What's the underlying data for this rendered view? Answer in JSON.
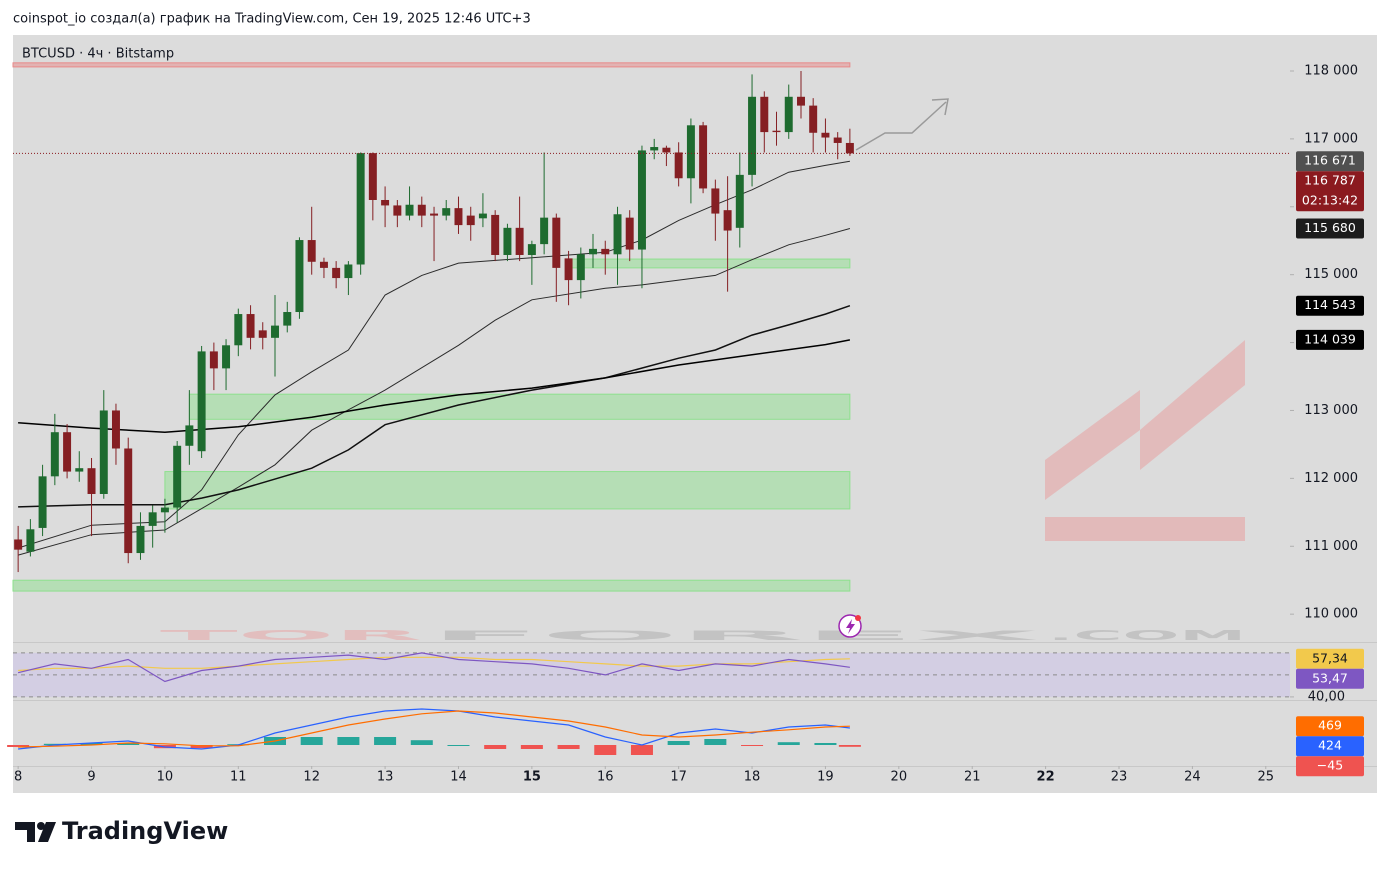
{
  "header": "coinspot_io создал(а) график на TradingView.com, Сен 19, 2025 12:46 UTC+3",
  "symbol": "BTCUSD · 4ч · Bitstamp",
  "watermark": {
    "part1": "TOR",
    "part2": "FOREX",
    "part3": ".COM"
  },
  "footer": {
    "brand": "TradingView"
  },
  "chart_data": [
    {
      "type": "candlestick",
      "xlim": [
        7.93,
        25.33
      ],
      "xticks": [
        8,
        9,
        10,
        11,
        12,
        13,
        14,
        15,
        16,
        17,
        18,
        19,
        20,
        21,
        22,
        23,
        24,
        25
      ],
      "xticks_bold": [
        15,
        22
      ],
      "ylim": [
        109590,
        118530
      ],
      "yticks": [
        {
          "value": 110000,
          "label": "110 000"
        },
        {
          "value": 111000,
          "label": "111 000"
        },
        {
          "value": 112000,
          "label": "112 000"
        },
        {
          "value": 113000,
          "label": "113 000"
        },
        {
          "value": 114000,
          "label": "114 000"
        },
        {
          "value": 115000,
          "label": "115 000"
        },
        {
          "value": 116000,
          "label": "116 000"
        },
        {
          "value": 117000,
          "label": "117 000"
        },
        {
          "value": 118000,
          "label": "118 000"
        }
      ],
      "grid": false,
      "up_color": "#1e6b2f",
      "down_color": "#851f23",
      "x": [
        8,
        8.167,
        8.333,
        8.5,
        8.667,
        8.833,
        9,
        9.167,
        9.333,
        9.5,
        9.667,
        9.833,
        10,
        10.167,
        10.333,
        10.5,
        10.667,
        10.833,
        11,
        11.167,
        11.333,
        11.5,
        11.667,
        11.833,
        12,
        12.167,
        12.333,
        12.5,
        12.667,
        12.833,
        13,
        13.167,
        13.333,
        13.5,
        13.667,
        13.833,
        14,
        14.167,
        14.333,
        14.5,
        14.667,
        14.833,
        15,
        15.167,
        15.333,
        15.5,
        15.667,
        15.833,
        16,
        16.167,
        16.333,
        16.5,
        16.667,
        16.833,
        17,
        17.167,
        17.333,
        17.5,
        17.667,
        17.833,
        18,
        18.167,
        18.333,
        18.5,
        18.667,
        18.833,
        19,
        19.167,
        19.333
      ],
      "open": [
        111100,
        110920,
        111270,
        112030,
        112680,
        112100,
        112150,
        111770,
        113000,
        112440,
        110900,
        111300,
        111500,
        111570,
        112480,
        112400,
        113870,
        113620,
        113960,
        114420,
        114180,
        114070,
        114250,
        114450,
        115510,
        115190,
        115100,
        114950,
        115150,
        116790,
        116100,
        116020,
        115870,
        116030,
        115900,
        115870,
        115980,
        115870,
        115830,
        115880,
        115290,
        115690,
        115290,
        115450,
        115840,
        115240,
        114920,
        115300,
        115380,
        115300,
        115840,
        115370,
        116830,
        116870,
        116800,
        116420,
        117200,
        116270,
        115950,
        115690,
        116470,
        117620,
        117120,
        117100,
        117620,
        117490,
        117090,
        117020,
        116940
      ],
      "high": [
        111300,
        111400,
        112200,
        112950,
        112800,
        112400,
        112300,
        113300,
        113100,
        112600,
        111500,
        111600,
        111700,
        112550,
        113300,
        113950,
        114000,
        114050,
        114500,
        114550,
        114300,
        114700,
        114600,
        115550,
        116000,
        115250,
        115200,
        115200,
        116800,
        116800,
        116300,
        116100,
        116300,
        116150,
        116000,
        116100,
        116150,
        116000,
        116200,
        115950,
        115750,
        116150,
        115500,
        116800,
        115900,
        115350,
        115400,
        115600,
        115500,
        116000,
        115950,
        116900,
        117000,
        116900,
        116950,
        117300,
        117250,
        116400,
        116450,
        116800,
        117950,
        117700,
        117400,
        117800,
        118000,
        117600,
        117300,
        117100,
        117150
      ],
      "low": [
        110620,
        110850,
        111150,
        111900,
        112000,
        111950,
        111150,
        111700,
        112200,
        110750,
        110800,
        110980,
        111200,
        111350,
        112200,
        112300,
        113300,
        113300,
        113800,
        113900,
        113900,
        113500,
        114150,
        114350,
        115000,
        114950,
        114800,
        114700,
        115000,
        115800,
        115700,
        115700,
        115800,
        115700,
        115200,
        115800,
        115600,
        115500,
        115700,
        115200,
        115200,
        115200,
        114850,
        115300,
        114600,
        114550,
        114650,
        115100,
        115000,
        114850,
        115200,
        114800,
        116700,
        116600,
        116300,
        116050,
        116200,
        115500,
        114750,
        115400,
        116300,
        116800,
        116900,
        117000,
        117300,
        116800,
        116800,
        116700,
        116750
      ],
      "close": [
        110950,
        111250,
        112030,
        112680,
        112100,
        112150,
        111770,
        113000,
        112440,
        110900,
        111300,
        111500,
        111570,
        112480,
        112780,
        113870,
        113620,
        113960,
        114420,
        114070,
        114070,
        114250,
        114450,
        115510,
        115190,
        115100,
        114950,
        115150,
        116790,
        116100,
        116020,
        115870,
        116030,
        115870,
        115870,
        115980,
        115730,
        115730,
        115900,
        115290,
        115690,
        115290,
        115450,
        115840,
        115100,
        114920,
        115300,
        115380,
        115300,
        115890,
        115370,
        116830,
        116880,
        116800,
        116420,
        117200,
        116270,
        115900,
        115650,
        116470,
        117620,
        117100,
        117100,
        117620,
        117490,
        117090,
        117020,
        116940,
        116787
      ],
      "last_price": {
        "value": 116787,
        "label": "116 787",
        "countdown": "02:13:42",
        "color": "#8b1a1f"
      },
      "series": [
        {
          "color": "#2b2b2b",
          "width": 1,
          "label_color": "#505050",
          "x": [
            8,
            9,
            10,
            10.5,
            11,
            11.5,
            12,
            12.5,
            13,
            13.5,
            14,
            15,
            15.5,
            16,
            16.5,
            17,
            17.5,
            18,
            18.5,
            19,
            19.333
          ],
          "values": [
            110975,
            111310,
            111360,
            111830,
            112640,
            113230,
            113570,
            113890,
            114700,
            114990,
            115170,
            115250,
            115290,
            115330,
            115510,
            115800,
            116030,
            116250,
            116510,
            116610,
            116671
          ],
          "last_label": "116 671"
        },
        {
          "color": "#2b2b2b",
          "width": 1,
          "label_color": "#1c1c1c",
          "x": [
            8,
            9,
            10,
            11,
            11.5,
            12,
            12.5,
            13,
            14,
            14.5,
            15,
            16,
            16.5,
            17,
            17.5,
            18,
            18.5,
            19,
            19.333
          ],
          "values": [
            110870,
            111170,
            111240,
            111870,
            112200,
            112710,
            113010,
            113300,
            113960,
            114330,
            114630,
            114800,
            114850,
            114920,
            114990,
            115220,
            115440,
            115580,
            115680
          ],
          "last_label": "115 680"
        },
        {
          "color": "#111111",
          "width": 1.5,
          "label_color": "#000000",
          "x": [
            8,
            9,
            10,
            10.5,
            11,
            12,
            12.5,
            13,
            14,
            15,
            16,
            17,
            17.5,
            18,
            18.5,
            19,
            19.333
          ],
          "values": [
            111580,
            111610,
            111610,
            111710,
            111830,
            112150,
            112420,
            112790,
            113080,
            113300,
            113480,
            113770,
            113890,
            114110,
            114260,
            114420,
            114543
          ],
          "last_label": "114 543"
        },
        {
          "color": "#000000",
          "width": 1.5,
          "label_color": "#000000",
          "x": [
            8,
            9,
            10,
            11,
            12,
            13,
            14,
            15,
            16,
            17,
            18,
            19,
            19.333
          ],
          "values": [
            112820,
            112740,
            112680,
            112760,
            112900,
            113080,
            113230,
            113330,
            113480,
            113670,
            113820,
            113970,
            114039
          ],
          "last_label": "114 039"
        }
      ],
      "zones": [
        {
          "x": [
            15.5,
            19.333
          ],
          "y": [
            115100,
            115230
          ],
          "color": "#8ee08e"
        },
        {
          "x": [
            10.333,
            19.333
          ],
          "y": [
            112870,
            113240
          ],
          "color": "#8ee08e"
        },
        {
          "x": [
            10,
            19.333
          ],
          "y": [
            111550,
            112100
          ],
          "color": "#8ee08e"
        },
        {
          "x": [
            7.93,
            19.333
          ],
          "y": [
            110340,
            110500
          ],
          "color": "#8ee08e"
        },
        {
          "x": [
            7.93,
            19.333
          ],
          "y": [
            118060,
            118120
          ],
          "color": "#e88a8a"
        }
      ]
    },
    {
      "type": "line",
      "ylim": [
        38.6,
        64.5
      ],
      "yticks": [
        {
          "value": 40,
          "label": "40,00"
        }
      ],
      "levels": [
        60,
        50,
        40
      ],
      "band_color": "#cfc8e6",
      "series": [
        {
          "color": "#f2c94c",
          "x": [
            8,
            8.5,
            9,
            9.5,
            10,
            10.5,
            11,
            11.5,
            12,
            12.5,
            13,
            13.5,
            14,
            14.5,
            15,
            15.5,
            16,
            16.5,
            17,
            17.5,
            18,
            18.5,
            19,
            19.333
          ],
          "values": [
            52,
            53,
            53,
            54,
            53,
            53,
            54,
            55,
            56,
            57,
            58,
            58,
            58,
            57,
            57,
            56,
            55,
            54,
            54,
            55,
            55,
            56,
            57,
            57.34
          ],
          "last_label": "57,34",
          "label_text_color": "#131722"
        },
        {
          "color": "#7e57c2",
          "x": [
            8,
            8.5,
            9,
            9.5,
            10,
            10.5,
            11,
            11.5,
            12,
            12.5,
            13,
            13.5,
            14,
            14.5,
            15,
            15.5,
            16,
            16.5,
            17,
            17.5,
            18,
            18.5,
            19,
            19.333
          ],
          "values": [
            51,
            55,
            53,
            57,
            47,
            52,
            54,
            57,
            58,
            59,
            57,
            60,
            57,
            56,
            55,
            53,
            50,
            55,
            52,
            55,
            54,
            57,
            55,
            53.47
          ],
          "last_label": "53,47",
          "label_text_color": "#ffffff"
        }
      ]
    },
    {
      "type": "macd",
      "ylim": [
        -500,
        1075
      ],
      "x": [
        8,
        8.5,
        9,
        9.5,
        10,
        10.5,
        11,
        11.5,
        12,
        12.5,
        13,
        13.5,
        14,
        14.5,
        15,
        15.5,
        16,
        16.5,
        17,
        17.5,
        18,
        18.5,
        19,
        19.333
      ],
      "histogram": {
        "values": [
          -50,
          30,
          50,
          50,
          -80,
          -80,
          20,
          200,
          200,
          200,
          200,
          120,
          0,
          -100,
          -100,
          -100,
          -250,
          -250,
          100,
          150,
          -20,
          70,
          50,
          -45
        ],
        "last_label": "−45",
        "up_color": "#26a69a",
        "down_color": "#ef5350"
      },
      "series": [
        {
          "color": "#2962ff",
          "values": [
            -100,
            0,
            50,
            100,
            -50,
            -100,
            0,
            300,
            500,
            700,
            850,
            900,
            850,
            700,
            600,
            500,
            200,
            0,
            300,
            400,
            300,
            450,
            500,
            424
          ],
          "last_label": "424"
        },
        {
          "color": "#ff6d00",
          "values": [
            -50,
            -30,
            0,
            50,
            30,
            -20,
            -20,
            100,
            300,
            500,
            650,
            780,
            850,
            800,
            700,
            600,
            450,
            250,
            200,
            250,
            320,
            380,
            450,
            469
          ],
          "last_label": "469"
        }
      ]
    }
  ]
}
